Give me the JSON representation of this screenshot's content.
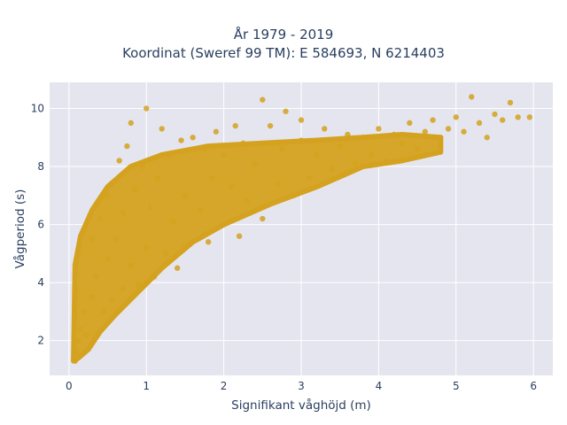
{
  "chart_data": {
    "type": "scatter",
    "title": "År 1979 - 2019",
    "subtitle": "Koordinat (Sweref 99 TM): E 584693, N 6214403",
    "xlabel": "Signifikant våghöjd (m)",
    "ylabel": "Vågperiod (s)",
    "xlim": [
      -0.25,
      6.25
    ],
    "ylim": [
      0.8,
      10.9
    ],
    "xticks": [
      0,
      1,
      2,
      3,
      4,
      5,
      6
    ],
    "yticks": [
      2,
      4,
      6,
      8,
      10
    ],
    "grid": true,
    "marker_color": "#D4A21F",
    "plot_bg": "#E5E5F0",
    "series": [
      {
        "values_note": "",
        "points": [
          [
            0.08,
            1.3
          ],
          [
            0.1,
            1.6
          ],
          [
            0.12,
            2.0
          ],
          [
            0.15,
            2.4
          ],
          [
            0.2,
            3.0
          ],
          [
            0.22,
            2.2
          ],
          [
            0.3,
            3.5
          ],
          [
            0.3,
            5.5
          ],
          [
            0.35,
            4.2
          ],
          [
            0.4,
            6.2
          ],
          [
            0.45,
            3.0
          ],
          [
            0.5,
            4.8
          ],
          [
            0.5,
            7.0
          ],
          [
            0.55,
            3.4
          ],
          [
            0.6,
            5.5
          ],
          [
            0.65,
            8.2
          ],
          [
            0.7,
            3.8
          ],
          [
            0.7,
            6.4
          ],
          [
            0.75,
            8.7
          ],
          [
            0.8,
            4.6
          ],
          [
            0.8,
            9.5
          ],
          [
            0.85,
            7.2
          ],
          [
            0.9,
            3.9
          ],
          [
            0.95,
            8.0
          ],
          [
            1.0,
            10.0
          ],
          [
            1.0,
            5.2
          ],
          [
            1.05,
            6.6
          ],
          [
            1.1,
            4.2
          ],
          [
            1.15,
            7.6
          ],
          [
            1.2,
            9.3
          ],
          [
            1.25,
            5.0
          ],
          [
            1.3,
            8.4
          ],
          [
            1.35,
            6.1
          ],
          [
            1.4,
            4.5
          ],
          [
            1.45,
            8.9
          ],
          [
            1.5,
            7.0
          ],
          [
            1.55,
            5.3
          ],
          [
            1.6,
            9.0
          ],
          [
            1.7,
            6.5
          ],
          [
            1.75,
            8.6
          ],
          [
            1.8,
            5.4
          ],
          [
            1.85,
            7.6
          ],
          [
            1.9,
            9.2
          ],
          [
            2.0,
            6.0
          ],
          [
            2.0,
            8.4
          ],
          [
            2.1,
            7.3
          ],
          [
            2.15,
            9.4
          ],
          [
            2.2,
            5.6
          ],
          [
            2.25,
            8.8
          ],
          [
            2.3,
            6.8
          ],
          [
            2.4,
            8.1
          ],
          [
            2.5,
            10.3
          ],
          [
            2.5,
            6.2
          ],
          [
            2.6,
            9.4
          ],
          [
            2.7,
            7.4
          ],
          [
            2.75,
            8.6
          ],
          [
            2.8,
            9.9
          ],
          [
            2.9,
            7.0
          ],
          [
            3.0,
            8.9
          ],
          [
            3.0,
            9.6
          ],
          [
            3.1,
            7.6
          ],
          [
            3.2,
            8.4
          ],
          [
            3.3,
            9.3
          ],
          [
            3.4,
            7.9
          ],
          [
            3.5,
            8.7
          ],
          [
            3.6,
            9.1
          ],
          [
            3.7,
            8.1
          ],
          [
            3.8,
            9.0
          ],
          [
            3.9,
            8.4
          ],
          [
            4.0,
            9.3
          ],
          [
            4.1,
            8.2
          ],
          [
            4.2,
            9.1
          ],
          [
            4.3,
            8.8
          ],
          [
            4.4,
            9.5
          ],
          [
            4.5,
            8.6
          ],
          [
            4.6,
            9.2
          ],
          [
            4.7,
            9.6
          ],
          [
            4.8,
            9.0
          ],
          [
            4.9,
            9.3
          ],
          [
            5.0,
            9.7
          ],
          [
            5.1,
            9.2
          ],
          [
            5.2,
            10.4
          ],
          [
            5.3,
            9.5
          ],
          [
            5.4,
            9.0
          ],
          [
            5.5,
            9.8
          ],
          [
            5.6,
            9.6
          ],
          [
            5.7,
            10.2
          ],
          [
            5.8,
            9.7
          ],
          [
            5.95,
            9.7
          ]
        ]
      }
    ]
  }
}
